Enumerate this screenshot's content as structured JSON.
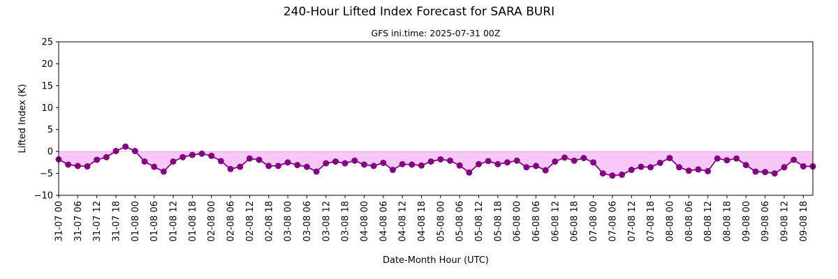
{
  "chart_data": {
    "type": "line",
    "title": "240-Hour Lifted Index Forecast for SARA BURI",
    "subtitle": "GFS ini.time: 2025-07-31 00Z",
    "xlabel": "Date-Month Hour (UTC)",
    "ylabel": "Lifted Index (K)",
    "ylim": [
      -10,
      25
    ],
    "yticks": [
      -10,
      -5,
      0,
      5,
      10,
      15,
      20,
      25
    ],
    "xlim_hours": [
      0,
      237
    ],
    "step_hours": 3,
    "xtick_labels": [
      "31-07 00",
      "31-07 06",
      "31-07 12",
      "31-07 18",
      "01-08 00",
      "01-08 06",
      "01-08 12",
      "01-08 18",
      "02-08 00",
      "02-08 06",
      "02-08 12",
      "02-08 18",
      "03-08 00",
      "03-08 06",
      "03-08 12",
      "03-08 18",
      "04-08 00",
      "04-08 06",
      "04-08 12",
      "04-08 18",
      "05-08 00",
      "05-08 06",
      "05-08 12",
      "05-08 18",
      "06-08 00",
      "06-08 06",
      "06-08 12",
      "06-08 18",
      "07-08 00",
      "07-08 06",
      "07-08 12",
      "07-08 18",
      "08-08 00",
      "08-08 06",
      "08-08 12",
      "08-08 18",
      "09-08 00",
      "09-08 06",
      "09-08 12",
      "09-08 18"
    ],
    "grid": false,
    "fill_below_zero": true,
    "series": [
      {
        "values": [
          -1.8,
          -3.0,
          -3.3,
          -3.4,
          -1.9,
          -1.3,
          0.1,
          1.1,
          0.1,
          -2.3,
          -3.5,
          -4.6,
          -2.3,
          -1.3,
          -0.8,
          -0.5,
          -1.0,
          -2.2,
          -4.0,
          -3.5,
          -1.6,
          -1.9,
          -3.3,
          -3.3,
          -2.5,
          -3.1,
          -3.5,
          -4.6,
          -2.7,
          -2.3,
          -2.7,
          -2.1,
          -3.0,
          -3.3,
          -2.6,
          -4.2,
          -2.9,
          -3.0,
          -3.2,
          -2.3,
          -1.8,
          -2.1,
          -3.2,
          -4.8,
          -2.9,
          -2.2,
          -2.9,
          -2.5,
          -2.1,
          -3.6,
          -3.3,
          -4.3,
          -2.3,
          -1.4,
          -2.1,
          -1.5,
          -2.5,
          -5.0,
          -5.5,
          -5.3,
          -4.2,
          -3.5,
          -3.6,
          -2.6,
          -1.5,
          -3.6,
          -4.4,
          -4.1,
          -4.5,
          -1.6,
          -2.0,
          -1.6,
          -3.1,
          -4.6,
          -4.7,
          -5.0,
          -3.6,
          -1.9,
          -3.4,
          -3.4
        ],
        "color": "#800080",
        "fill_color": "#ee82ee"
      }
    ]
  }
}
